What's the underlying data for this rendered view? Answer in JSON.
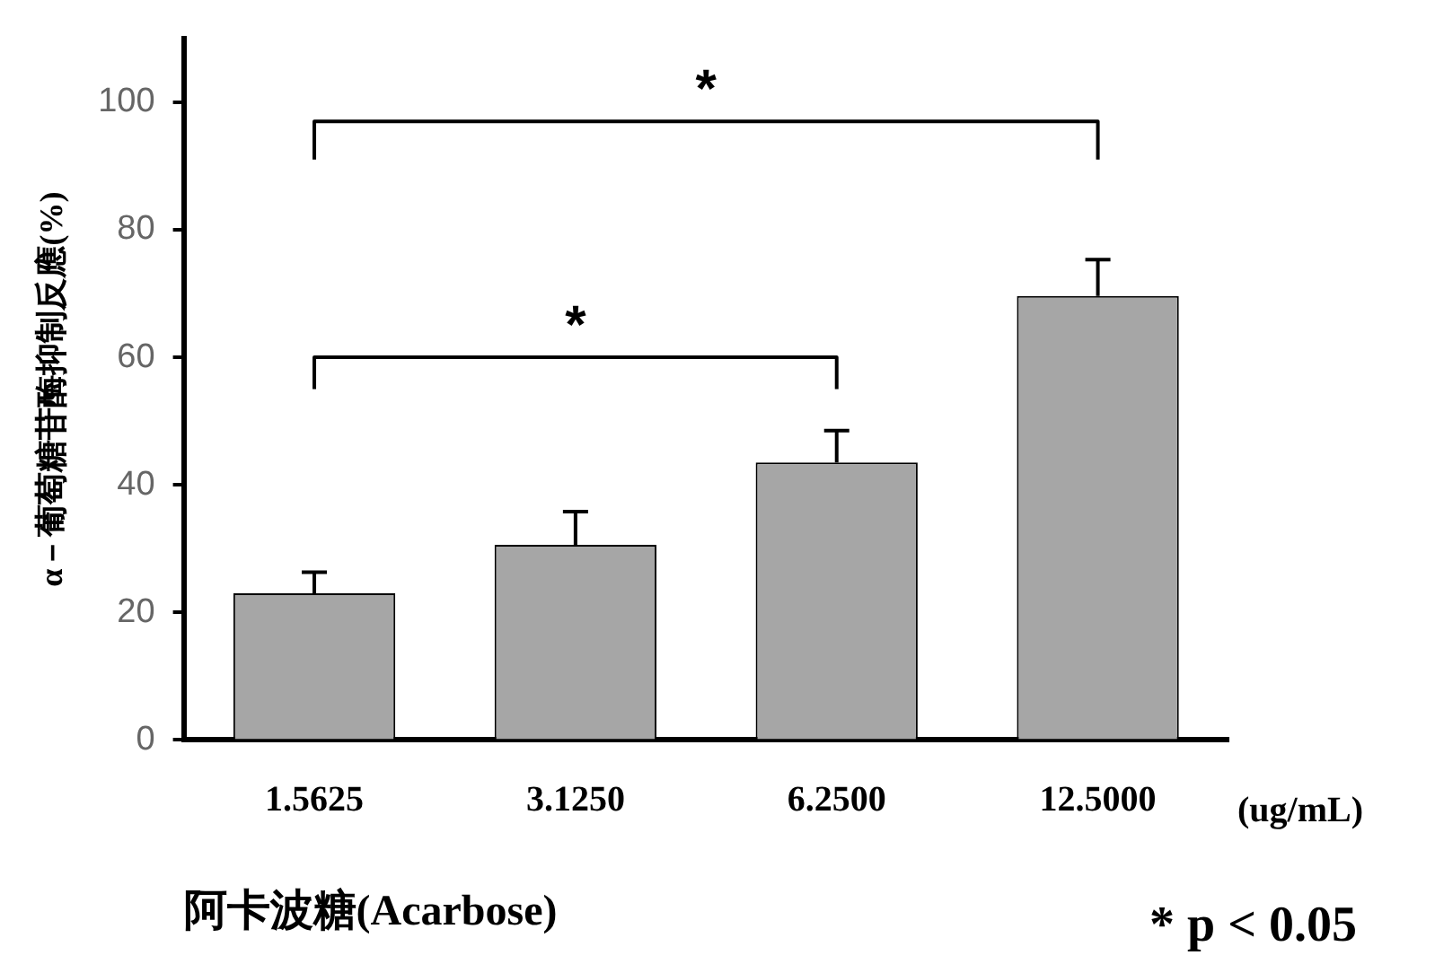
{
  "chart_data": {
    "type": "bar",
    "xlabel": "阿卡波糖(Acarbose)",
    "ylabel": "α－葡萄糖苷酶抑制反應(%)",
    "categories": [
      "1.5625",
      "3.1250",
      "6.2500",
      "12.5000"
    ],
    "values": [
      23,
      30.6,
      43.5,
      69.6
    ],
    "errors": [
      [
        23,
        26.3
      ],
      [
        30.6,
        35.8
      ],
      [
        43.5,
        48.5
      ],
      [
        69.6,
        75.3
      ]
    ],
    "color": "#a6a6a6",
    "ylim": [
      0,
      110
    ],
    "yticks": [
      0,
      20,
      40,
      60,
      80,
      100
    ],
    "grid": false,
    "legend": false,
    "annotations": [
      "*",
      "*",
      "(ug/mL)",
      "* p < 0.05"
    ]
  }
}
